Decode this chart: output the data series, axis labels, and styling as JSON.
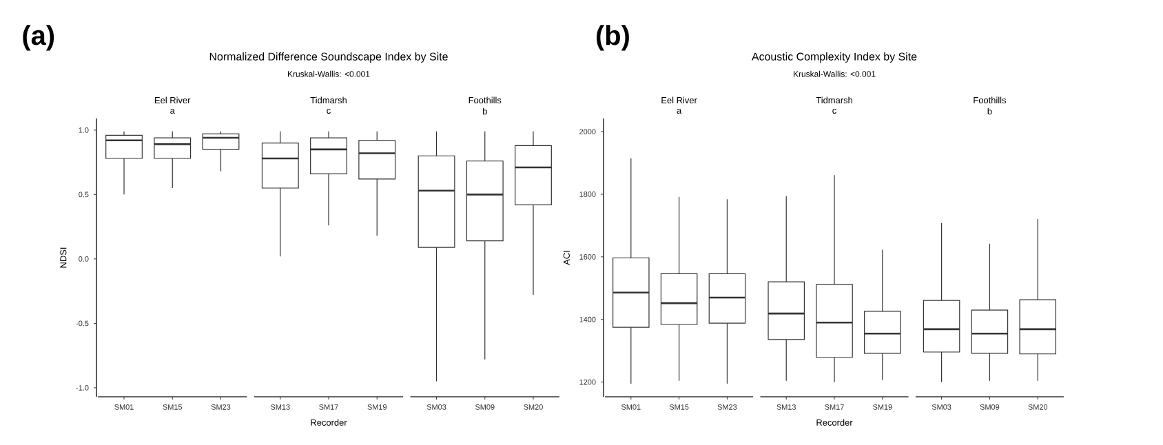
{
  "chart_data": [
    {
      "type": "box",
      "title": "Normalized Difference Soundscape Index by Site",
      "subtitle": "Kruskal-Wallis: <0.001",
      "xlabel": "Recorder",
      "ylabel": "NDSI",
      "color": "#333333",
      "categories": [
        "SM01",
        "SM15",
        "SM23",
        "SM13",
        "SM17",
        "SM19",
        "SM03",
        "SM09",
        "SM20"
      ],
      "ylim": [
        -1.07,
        1.09
      ],
      "yticks": [
        {
          "value": -1,
          "label": "-1.0"
        },
        {
          "value": -0.5,
          "label": "-0.5"
        },
        {
          "value": 0,
          "label": "0.0"
        },
        {
          "value": 0.5,
          "label": "0.5"
        },
        {
          "value": 1,
          "label": "1.0"
        }
      ],
      "annotations": [
        "(a)",
        "Eel River",
        "a",
        "Tidmarsh",
        "c",
        "Foothills",
        "b"
      ],
      "boxes": [
        {
          "low": 0.5,
          "q1": 0.78,
          "median": 0.92,
          "q3": 0.96,
          "high": 0.99
        },
        {
          "low": 0.55,
          "q1": 0.78,
          "median": 0.89,
          "q3": 0.94,
          "high": 0.99
        },
        {
          "low": 0.68,
          "q1": 0.85,
          "median": 0.94,
          "q3": 0.97,
          "high": 0.99
        },
        {
          "low": 0.02,
          "q1": 0.55,
          "median": 0.78,
          "q3": 0.9,
          "high": 0.99
        },
        {
          "low": 0.26,
          "q1": 0.66,
          "median": 0.85,
          "q3": 0.94,
          "high": 0.99
        },
        {
          "low": 0.18,
          "q1": 0.62,
          "median": 0.82,
          "q3": 0.92,
          "high": 0.99
        },
        {
          "low": -0.95,
          "q1": 0.09,
          "median": 0.53,
          "q3": 0.8,
          "high": 0.99
        },
        {
          "low": -0.78,
          "q1": 0.14,
          "median": 0.5,
          "q3": 0.76,
          "high": 0.99
        },
        {
          "low": -0.28,
          "q1": 0.42,
          "median": 0.71,
          "q3": 0.88,
          "high": 0.99
        }
      ]
    },
    {
      "type": "box",
      "title": "Acoustic Complexity Index by Site",
      "subtitle": "Kruskal-Wallis: <0.001",
      "xlabel": "Recorder",
      "ylabel": "ACI",
      "color": "#333333",
      "categories": [
        "SM01",
        "SM15",
        "SM23",
        "SM13",
        "SM17",
        "SM19",
        "SM03",
        "SM09",
        "SM20"
      ],
      "ylim": [
        1153,
        2042
      ],
      "yticks": [
        1200,
        1400,
        1600,
        1800,
        2000
      ],
      "annotations": [
        "(b)",
        "Eel River",
        "a",
        "Tidmarsh",
        "c",
        "Foothills",
        "b"
      ],
      "boxes": [
        {
          "low": 1195,
          "q1": 1375,
          "median": 1486,
          "q3": 1597,
          "high": 1915
        },
        {
          "low": 1204,
          "q1": 1384,
          "median": 1452,
          "q3": 1546,
          "high": 1791
        },
        {
          "low": 1195,
          "q1": 1388,
          "median": 1470,
          "q3": 1546,
          "high": 1784
        },
        {
          "low": 1204,
          "q1": 1336,
          "median": 1419,
          "q3": 1520,
          "high": 1794
        },
        {
          "low": 1200,
          "q1": 1279,
          "median": 1390,
          "q3": 1512,
          "high": 1861
        },
        {
          "low": 1207,
          "q1": 1292,
          "median": 1355,
          "q3": 1426,
          "high": 1623
        },
        {
          "low": 1200,
          "q1": 1296,
          "median": 1369,
          "q3": 1461,
          "high": 1708
        },
        {
          "low": 1204,
          "q1": 1292,
          "median": 1355,
          "q3": 1430,
          "high": 1642
        },
        {
          "low": 1204,
          "q1": 1290,
          "median": 1369,
          "q3": 1463,
          "high": 1721
        }
      ]
    }
  ]
}
